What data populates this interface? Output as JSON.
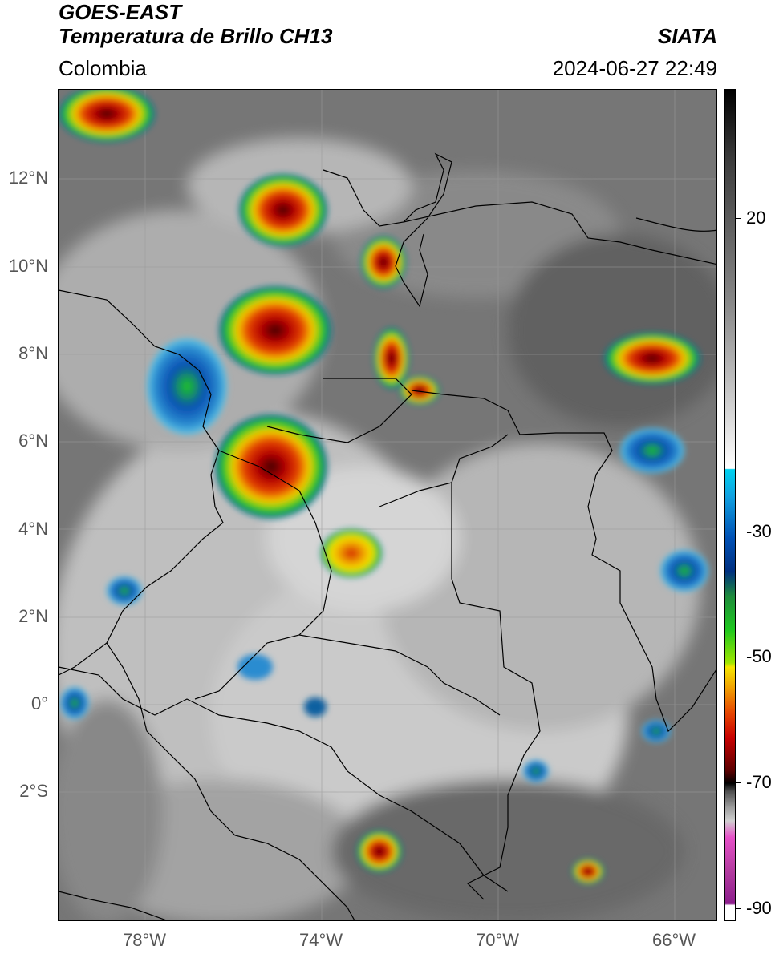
{
  "header": {
    "satellite": "GOES-EAST",
    "product": "Temperatura de Brillo CH13",
    "brand": "SIATA",
    "region": "Colombia",
    "datetime": "2024-06-27 22:49"
  },
  "axes": {
    "lat_labels": [
      "12°N",
      "10°N",
      "8°N",
      "6°N",
      "4°N",
      "2°N",
      "0°",
      "2°S"
    ],
    "lon_labels": [
      "78°W",
      "74°W",
      "70°W",
      "66°W"
    ]
  },
  "colorbar": {
    "ticks": [
      "20",
      "-30",
      "-50",
      "-70",
      "-90"
    ],
    "colors": {
      "warm_gray": "#8a8a8a",
      "white": "#ffffff",
      "cyan": "#00c8f0",
      "blue": "#003ca0",
      "green": "#1ec81e",
      "yellow": "#f5e600",
      "orange": "#f08c00",
      "red": "#d20000",
      "darkred": "#5a0000",
      "black": "#000000",
      "pink": "#e650c8",
      "purple": "#8c1e8c"
    }
  }
}
